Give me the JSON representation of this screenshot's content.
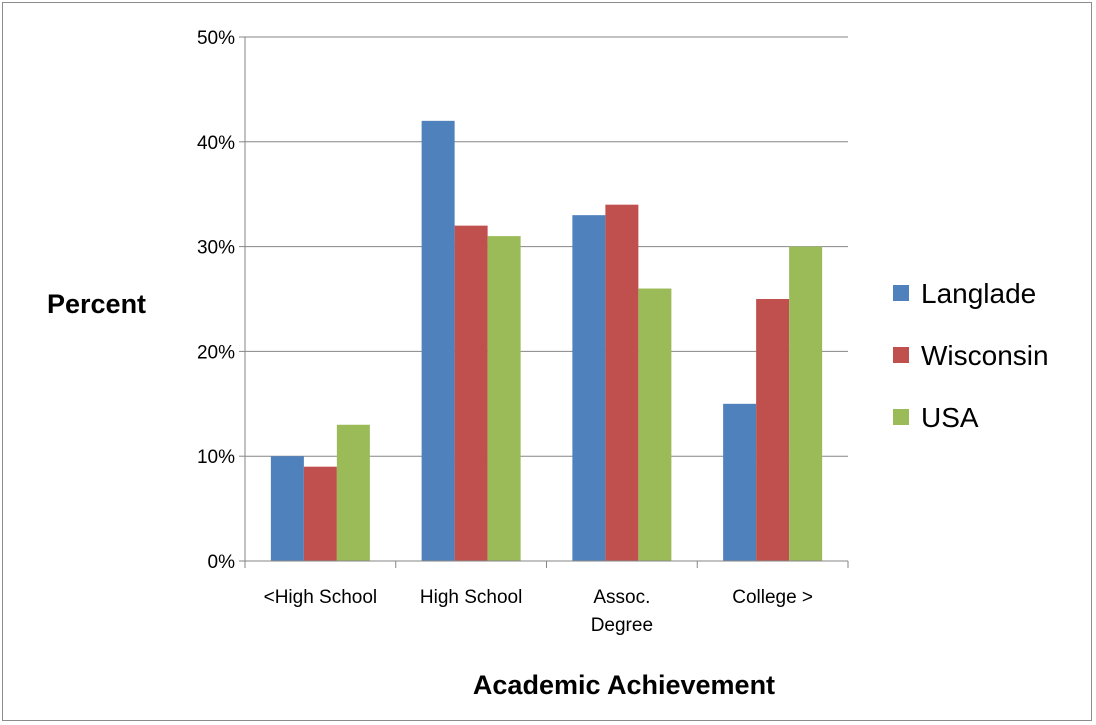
{
  "chart_data": {
    "type": "bar",
    "categories": [
      "<High School",
      "High School",
      "Assoc.\nDegree",
      "College >"
    ],
    "series": [
      {
        "name": "Langlade",
        "color": "#4f81bd",
        "values": [
          10,
          42,
          33,
          15
        ]
      },
      {
        "name": "Wisconsin",
        "color": "#c0504d",
        "values": [
          9,
          32,
          34,
          25
        ]
      },
      {
        "name": "USA",
        "color": "#9bbb59",
        "values": [
          13,
          31,
          26,
          30
        ]
      }
    ],
    "ylim": [
      0,
      50
    ],
    "yticks": [
      0,
      10,
      20,
      30,
      40,
      50
    ],
    "ytick_suffix": "%",
    "xlabel": "Academic Achievement",
    "ylabel": "Percent",
    "title": "",
    "grid": true,
    "legend_position": "right"
  }
}
